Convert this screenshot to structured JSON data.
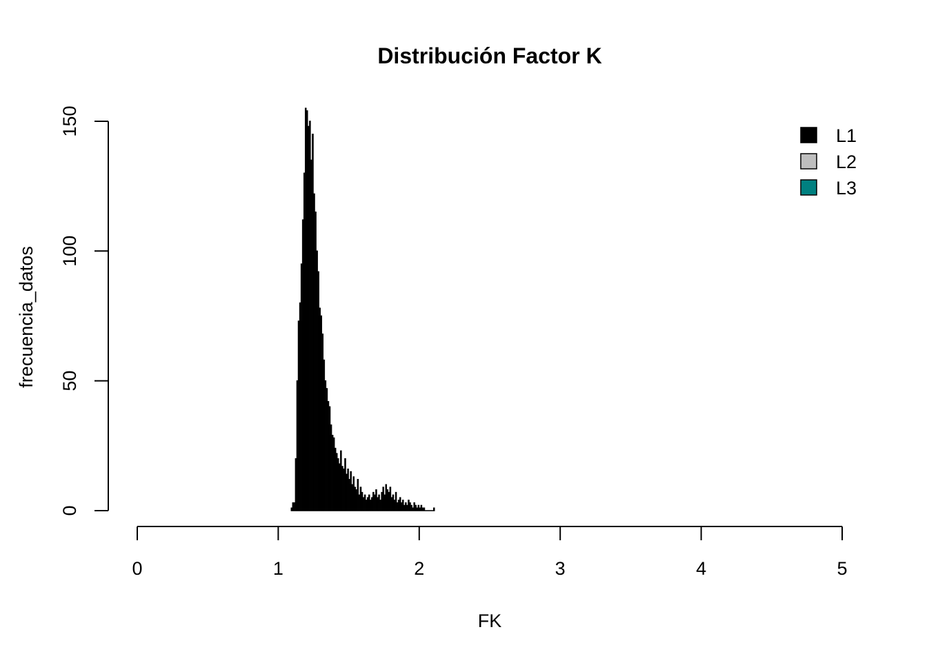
{
  "chart_data": {
    "type": "histogram",
    "title": "Distribución Factor K",
    "xlabel": "FK",
    "ylabel": "frecuencia_datos",
    "bins": [
      1.09,
      1.1,
      1.11,
      1.12,
      1.13,
      1.14,
      1.15,
      1.16,
      1.17,
      1.18,
      1.19,
      1.2,
      1.21,
      1.22,
      1.23,
      1.24,
      1.25,
      1.26,
      1.27,
      1.28,
      1.29,
      1.3,
      1.31,
      1.32,
      1.33,
      1.34,
      1.35,
      1.36,
      1.37,
      1.38,
      1.39,
      1.4,
      1.41,
      1.42,
      1.43,
      1.44,
      1.45,
      1.46,
      1.47,
      1.48,
      1.49,
      1.5,
      1.51,
      1.52,
      1.53,
      1.54,
      1.55,
      1.56,
      1.57,
      1.58,
      1.59,
      1.6,
      1.61,
      1.62,
      1.63,
      1.64,
      1.65,
      1.66,
      1.67,
      1.68,
      1.69,
      1.7,
      1.71,
      1.72,
      1.73,
      1.74,
      1.75,
      1.76,
      1.77,
      1.78,
      1.79,
      1.8,
      1.81,
      1.82,
      1.83,
      1.84,
      1.85,
      1.86,
      1.87,
      1.88,
      1.89,
      1.9,
      1.91,
      1.92,
      1.93,
      1.94,
      1.95,
      1.96,
      1.97,
      1.98,
      1.99,
      2,
      2.01,
      2.02,
      2.03,
      2.04,
      2.05,
      2.06,
      2.07,
      2.08,
      2.09,
      2.1,
      2.11
    ],
    "counts": [
      1,
      3,
      3,
      20,
      50,
      73,
      80,
      95,
      112,
      130,
      155,
      154,
      148,
      150,
      135,
      145,
      122,
      115,
      100,
      92,
      78,
      75,
      68,
      58,
      50,
      47,
      42,
      40,
      33,
      29,
      28,
      24,
      22,
      20,
      18,
      23,
      17,
      16,
      20,
      14,
      16,
      12,
      15,
      10,
      13,
      9,
      8,
      12,
      6,
      9,
      7,
      5,
      6,
      4,
      5,
      6,
      4,
      5,
      7,
      6,
      8,
      5,
      6,
      4,
      7,
      9,
      6,
      10,
      8,
      7,
      9,
      5,
      6,
      4,
      7,
      3,
      4,
      5,
      3,
      4,
      2,
      3,
      2,
      4,
      3,
      2,
      1,
      3,
      2,
      1,
      2,
      1,
      2,
      1,
      1,
      0,
      0,
      0,
      0,
      0,
      0,
      1
    ],
    "color": "#000000",
    "xlim": [
      0,
      5
    ],
    "xticks": [
      0,
      1,
      2,
      3,
      4,
      5
    ],
    "ylim": [
      0,
      155
    ],
    "yticks": [
      0,
      50,
      100,
      150
    ],
    "legend": {
      "position": "topright",
      "entries": [
        {
          "name": "L1",
          "color": "#000000"
        },
        {
          "name": "L2",
          "color": "#bebebe"
        },
        {
          "name": "L3",
          "color": "#008080"
        }
      ]
    }
  }
}
